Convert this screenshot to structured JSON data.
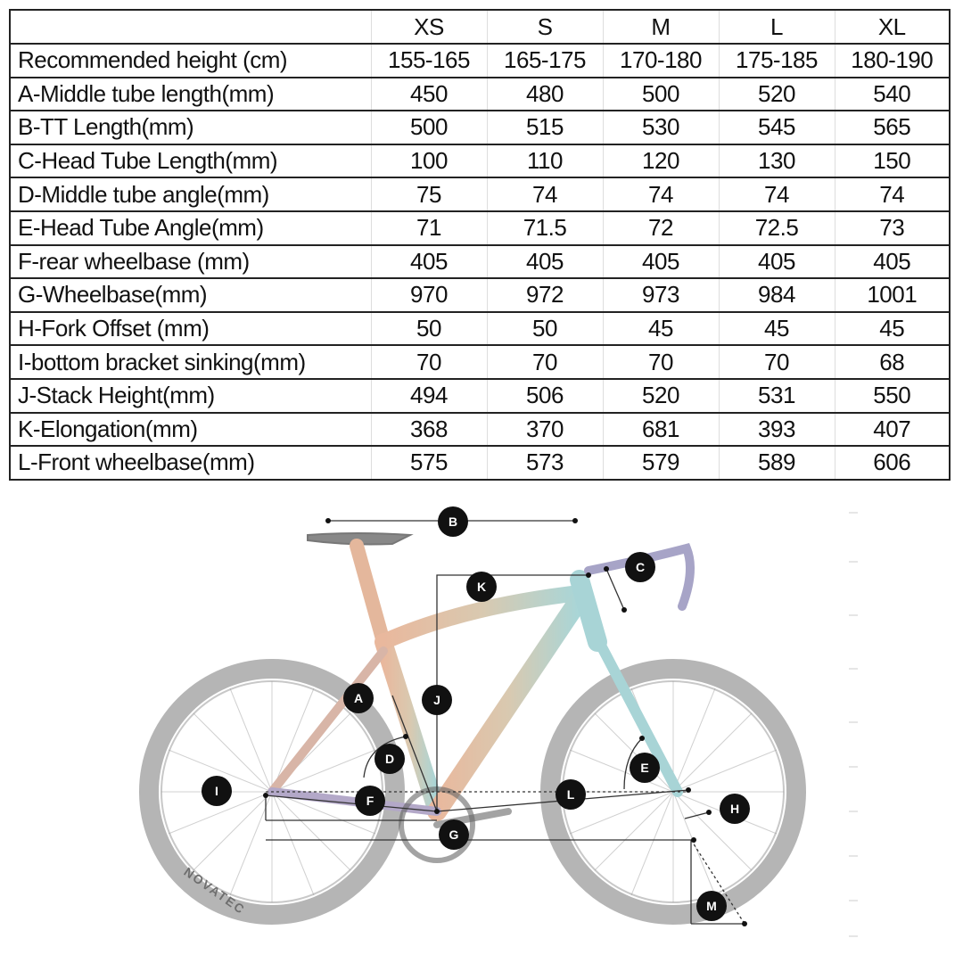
{
  "table": {
    "columns": [
      "",
      "XS",
      "S",
      "M",
      "L",
      "XL"
    ],
    "rows": [
      {
        "label": "Recommended height (cm)",
        "values": [
          "155-165",
          "165-175",
          "170-180",
          "175-185",
          "180-190"
        ]
      },
      {
        "label": "A-Middle tube length(mm)",
        "values": [
          "450",
          "480",
          "500",
          "520",
          "540"
        ]
      },
      {
        "label": "B-TT Length(mm)",
        "values": [
          "500",
          "515",
          "530",
          "545",
          "565"
        ]
      },
      {
        "label": "C-Head Tube Length(mm)",
        "values": [
          "100",
          "110",
          "120",
          "130",
          "150"
        ]
      },
      {
        "label": "D-Middle tube angle(mm)",
        "values": [
          "75",
          "74",
          "74",
          "74",
          "74"
        ]
      },
      {
        "label": "E-Head Tube Angle(mm)",
        "values": [
          "71",
          "71.5",
          "72",
          "72.5",
          "73"
        ]
      },
      {
        "label": "F-rear wheelbase (mm)",
        "values": [
          "405",
          "405",
          "405",
          "405",
          "405"
        ]
      },
      {
        "label": "G-Wheelbase(mm)",
        "values": [
          "970",
          "972",
          "973",
          "984",
          "1001"
        ]
      },
      {
        "label": "H-Fork Offset (mm)",
        "values": [
          "50",
          "50",
          "45",
          "45",
          "45"
        ]
      },
      {
        "label": "I-bottom bracket sinking(mm)",
        "values": [
          "70",
          "70",
          "70",
          "70",
          "68"
        ]
      },
      {
        "label": "J-Stack Height(mm)",
        "values": [
          "494",
          "506",
          "520",
          "531",
          "550"
        ]
      },
      {
        "label": "K-Elongation(mm)",
        "values": [
          "368",
          "370",
          "681",
          "393",
          "407"
        ]
      },
      {
        "label": "L-Front wheelbase(mm)",
        "values": [
          "575",
          "573",
          "579",
          "589",
          "606"
        ]
      }
    ]
  },
  "diagram": {
    "labels": {
      "A": "A",
      "B": "B",
      "C": "C",
      "D": "D",
      "E": "E",
      "F": "F",
      "G": "G",
      "H": "H",
      "I": "I",
      "J": "J",
      "K": "K",
      "L": "L",
      "M": "M"
    },
    "rim_text": "NOVATEC",
    "colors": {
      "badge": "#111111",
      "wheel": "#9a9a9a",
      "frame_warm": "#e8b89a",
      "frame_cool": "#a9d4d6"
    }
  }
}
